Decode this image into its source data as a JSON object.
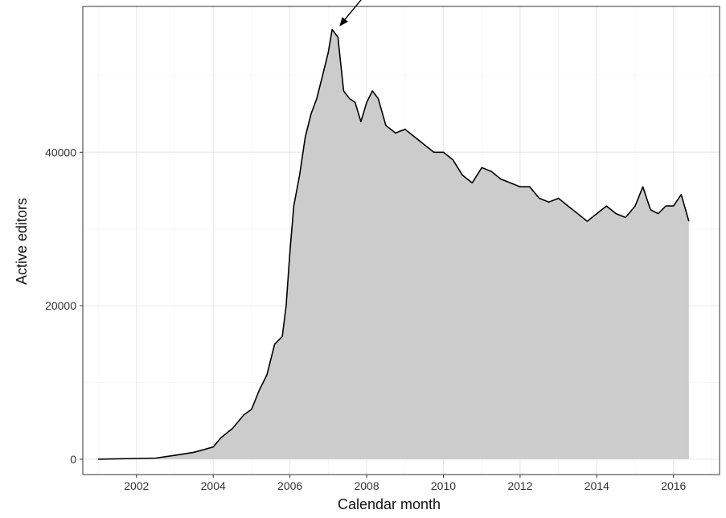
{
  "chart_data": {
    "type": "area",
    "title": "",
    "xlabel": "Calendar month",
    "ylabel": "Active editors",
    "xlim": [
      2000.6,
      2017.2
    ],
    "ylim": [
      -2000,
      59000
    ],
    "x_ticks": [
      2002,
      2004,
      2006,
      2008,
      2010,
      2012,
      2014,
      2016
    ],
    "x_tick_labels": [
      "2002",
      "2004",
      "2006",
      "2008",
      "2010",
      "2012",
      "2014",
      "2016"
    ],
    "y_ticks": [
      0,
      20000,
      40000
    ],
    "y_tick_labels": [
      "0",
      "20000",
      "40000"
    ],
    "grid": true,
    "fill_color": "#cccccc",
    "line_color": "#000000",
    "annotation": {
      "type": "arrow",
      "target": [
        2007.25,
        56000
      ]
    },
    "series": [
      {
        "x": [
          2001.0,
          2001.5,
          2002.0,
          2002.5,
          2003.0,
          2003.5,
          2004.0,
          2004.2,
          2004.5,
          2004.8,
          2005.0,
          2005.2,
          2005.4,
          2005.6,
          2005.8,
          2005.9,
          2006.0,
          2006.1,
          2006.25,
          2006.4,
          2006.55,
          2006.7,
          2006.85,
          2007.0,
          2007.1,
          2007.25,
          2007.4,
          2007.55,
          2007.7,
          2007.85,
          2008.0,
          2008.15,
          2008.3,
          2008.5,
          2008.75,
          2009.0,
          2009.25,
          2009.5,
          2009.75,
          2010.0,
          2010.25,
          2010.5,
          2010.75,
          2011.0,
          2011.25,
          2011.5,
          2011.75,
          2012.0,
          2012.25,
          2012.5,
          2012.75,
          2013.0,
          2013.25,
          2013.5,
          2013.75,
          2014.0,
          2014.25,
          2014.5,
          2014.75,
          2015.0,
          2015.2,
          2015.4,
          2015.6,
          2015.8,
          2016.0,
          2016.2,
          2016.4
        ],
        "y": [
          0,
          50,
          100,
          150,
          500,
          900,
          1600,
          2800,
          4000,
          5800,
          6500,
          9000,
          11000,
          15000,
          16000,
          20000,
          27000,
          33000,
          37000,
          42000,
          45000,
          47000,
          50000,
          53000,
          56000,
          55000,
          48000,
          47000,
          46500,
          44000,
          46500,
          48000,
          47000,
          43500,
          42500,
          43000,
          42000,
          41000,
          40000,
          40000,
          39000,
          37000,
          36000,
          38000,
          37500,
          36500,
          36000,
          35500,
          35500,
          34000,
          33500,
          34000,
          33000,
          32000,
          31000,
          32000,
          33000,
          32000,
          31500,
          33000,
          35500,
          32500,
          32000,
          33000,
          33000,
          34500,
          31000
        ]
      }
    ]
  }
}
